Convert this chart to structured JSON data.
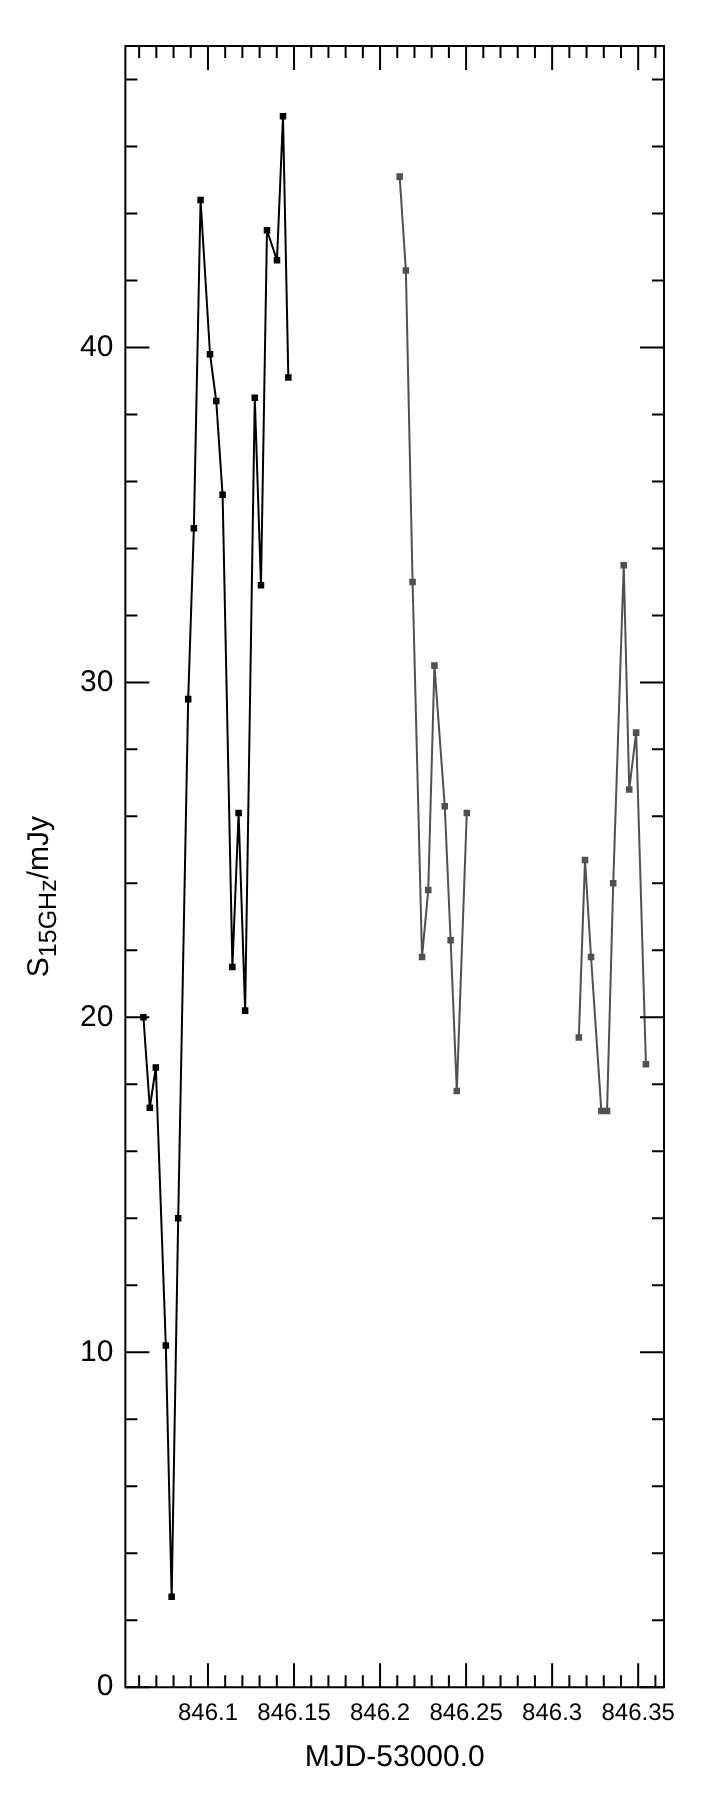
{
  "chart_data": {
    "type": "line",
    "xlabel": "MJD-53000.0",
    "ylabel": "S$_{15GHz}$/mJy",
    "marker": "square",
    "xlim": [
      846.052,
      846.365
    ],
    "xticks": [
      {
        "value": 846.06,
        "label": null
      },
      {
        "value": 846.07,
        "label": null
      },
      {
        "value": 846.08,
        "label": null
      },
      {
        "value": 846.09,
        "label": null
      },
      846.1,
      {
        "value": 846.11,
        "label": null
      },
      {
        "value": 846.12,
        "label": null
      },
      {
        "value": 846.13,
        "label": null
      },
      {
        "value": 846.14,
        "label": null
      },
      846.15,
      {
        "value": 846.16,
        "label": null
      },
      {
        "value": 846.17,
        "label": null
      },
      {
        "value": 846.18,
        "label": null
      },
      {
        "value": 846.19,
        "label": null
      },
      846.2,
      {
        "value": 846.21,
        "label": null
      },
      {
        "value": 846.22,
        "label": null
      },
      {
        "value": 846.23,
        "label": null
      },
      {
        "value": 846.24,
        "label": null
      },
      846.25,
      {
        "value": 846.26,
        "label": null
      },
      {
        "value": 846.27,
        "label": null
      },
      {
        "value": 846.28,
        "label": null
      },
      {
        "value": 846.29,
        "label": null
      },
      846.3,
      {
        "value": 846.31,
        "label": null
      },
      {
        "value": 846.32,
        "label": null
      },
      {
        "value": 846.33,
        "label": null
      },
      {
        "value": 846.34,
        "label": null
      },
      846.35,
      {
        "value": 846.36,
        "label": null
      }
    ],
    "ylim": [
      0,
      49
    ],
    "yticks": [
      0,
      {
        "value": 2,
        "label": null
      },
      {
        "value": 4,
        "label": null
      },
      {
        "value": 6,
        "label": null
      },
      {
        "value": 8,
        "label": null
      },
      10,
      {
        "value": 12,
        "label": null
      },
      {
        "value": 14,
        "label": null
      },
      {
        "value": 16,
        "label": null
      },
      {
        "value": 18,
        "label": null
      },
      20,
      {
        "value": 22,
        "label": null
      },
      {
        "value": 24,
        "label": null
      },
      {
        "value": 26,
        "label": null
      },
      {
        "value": 28,
        "label": null
      },
      30,
      {
        "value": 32,
        "label": null
      },
      {
        "value": 34,
        "label": null
      },
      {
        "value": 36,
        "label": null
      },
      {
        "value": 38,
        "label": null
      },
      40,
      {
        "value": 42,
        "label": null
      },
      {
        "value": 44,
        "label": null
      },
      {
        "value": 46,
        "label": null
      },
      {
        "value": 48,
        "label": null
      }
    ],
    "series": [
      {
        "color": "#000000",
        "x": [
          846.0625,
          846.0662,
          846.0697,
          846.0755,
          846.0789,
          846.0827,
          846.0885,
          846.0918,
          846.0957,
          846.1012,
          846.1048,
          846.1085,
          846.1142,
          846.1178,
          846.1216,
          846.1272,
          846.1308,
          846.1343,
          846.1401,
          846.1436,
          846.1467
        ],
        "values": [
          20.0,
          17.3,
          18.5,
          10.2,
          2.7,
          14.0,
          29.5,
          34.6,
          44.4,
          39.8,
          38.4,
          35.6,
          21.5,
          26.1,
          20.2,
          38.5,
          32.9,
          43.5,
          42.6,
          46.9,
          39.1
        ]
      },
      {
        "color": "#505050",
        "x": [
          846.2114,
          846.215,
          846.2189,
          846.2244,
          846.228,
          846.2316,
          846.2376,
          846.241,
          846.2446,
          846.2504
        ],
        "values": [
          45.1,
          42.3,
          33.0,
          21.8,
          23.8,
          30.5,
          26.3,
          22.3,
          17.8,
          26.1
        ]
      },
      {
        "color": "#505050",
        "x": [
          846.3155,
          846.3191,
          846.3226,
          846.3286,
          846.3319,
          846.3355,
          846.3416,
          846.3448,
          846.3488,
          846.3545
        ],
        "values": [
          19.4,
          24.7,
          21.8,
          17.2,
          17.2,
          24.0,
          33.5,
          26.8,
          28.5,
          18.6
        ]
      }
    ]
  }
}
